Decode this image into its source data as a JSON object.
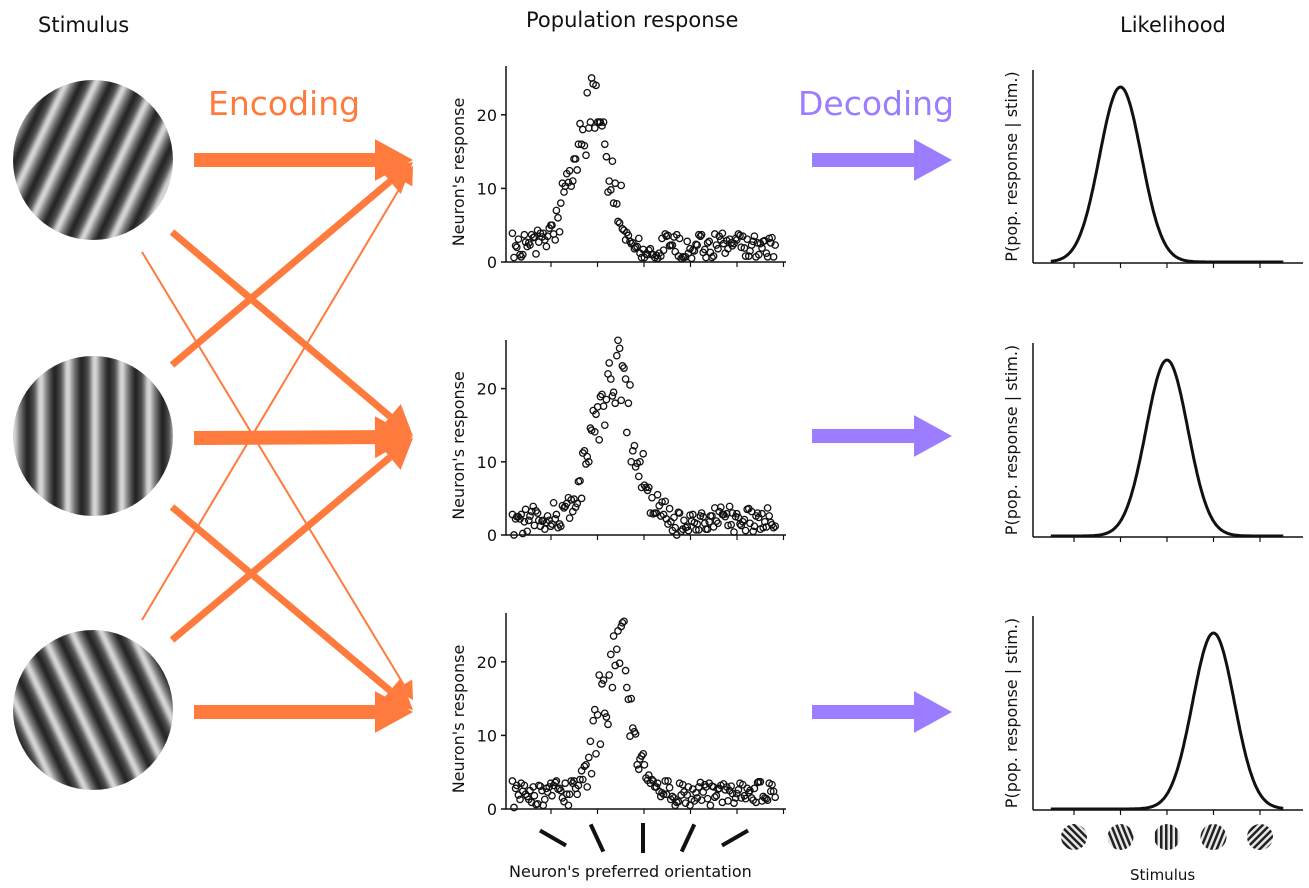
{
  "headers": {
    "stimulus": "Stimulus",
    "population": "Population response",
    "likelihood": "Likelihood"
  },
  "labels": {
    "encoding": "Encoding",
    "decoding": "Decoding",
    "x_pref": "Neuron's preferred orientation",
    "x_stim": "Stimulus"
  },
  "colors": {
    "encoding": "#ff7a3d",
    "decoding": "#9c7cff",
    "ink": "#111111"
  },
  "stimulus_orientations_deg": [
    25,
    0,
    -25
  ],
  "chart_data": [
    {
      "type": "scatter",
      "ylabel": "Neuron's response",
      "yticks": [
        0,
        10,
        20
      ],
      "ylim": [
        0,
        27
      ],
      "xlim": [
        0,
        60
      ],
      "x": [
        0,
        1,
        2,
        3,
        4,
        5,
        6,
        7,
        8,
        9,
        10,
        11,
        12,
        13,
        14,
        15,
        16,
        17,
        18,
        19,
        20,
        21,
        22,
        23,
        24,
        25,
        26,
        27,
        28,
        29,
        30,
        31,
        32,
        33,
        34,
        35,
        36,
        37,
        38,
        39,
        40,
        41,
        42,
        43,
        44,
        45,
        46,
        47,
        48,
        49,
        50,
        51,
        52,
        53,
        54,
        55,
        56,
        57,
        58,
        59
      ],
      "series": [
        {
          "values": [
            3.9,
            2.0,
            0.7,
            2.7,
            2.3,
            3.4,
            2.7,
            3.9,
            3.5,
            5.0,
            7.0,
            8.0,
            10.3,
            12.4,
            14.0,
            16.0,
            18.0,
            23.0,
            25.0,
            24.0,
            19.0,
            16.0,
            11.0,
            8.0,
            5.5,
            4.5,
            4.0,
            2.5,
            2.0,
            1.2,
            0.6,
            1.6,
            1.0,
            0.5,
            3.2,
            3.5,
            2.3,
            1.4,
            3.2,
            0.6,
            1.2,
            1.6,
            2.3,
            3.7,
            0.6,
            1.3,
            3.8,
            3.5,
            2.5,
            1.8,
            2.2,
            3.0,
            2.0,
            0.8,
            1.5,
            3.5,
            1.0,
            2.8,
            0.7,
            3.3
          ]
        },
        {
          "values": [
            0.6,
            3.1,
            1.0,
            2.1,
            3.7,
            1.1,
            3.9,
            3.0,
            4.6,
            3.8,
            6.0,
            10.7,
            12.0,
            10.3,
            14.0,
            18.8,
            15.8,
            18.2,
            24.2,
            19.0,
            18.5,
            14.3,
            9.8,
            10.7,
            5.3,
            4.3,
            3.6,
            2.6,
            2.1,
            0.6,
            1.1,
            1.8,
            0.6,
            1.2,
            1.6,
            3.6,
            2.3,
            3.7,
            0.5,
            0.7,
            1.8,
            1.5,
            3.7,
            1.3,
            2.6,
            0.6,
            2.3,
            3.0,
            1.2,
            3.1,
            2.5,
            3.8,
            3.5,
            3.1,
            2.3,
            0.7,
            2.5,
            2.9,
            3.2,
            0.7
          ]
        },
        {
          "values": [
            2.2,
            1.0,
            3.7,
            2.6,
            3.3,
            4.3,
            3.4,
            2.1,
            5.0,
            3.0,
            4.1,
            9.5,
            10.8,
            11.0,
            12.5,
            16.0,
            14.5,
            19.0,
            18.2,
            19.0,
            19.0,
            9.5,
            13.7,
            7.9,
            10.4,
            3.0,
            2.8,
            1.8,
            3.2,
            1.7,
            1.0,
            1.0,
            0.9,
            0.8,
            3.8,
            2.2,
            3.4,
            0.8,
            0.7,
            2.8,
            0.5,
            2.4,
            3.5,
            1.7,
            2.8,
            0.8,
            1.8,
            3.9,
            2.9,
            2.6,
            3.2,
            3.6,
            1.9,
            0.8,
            2.8,
            2.6,
            1.9,
            1.2,
            2.6,
            2.3
          ]
        }
      ]
    },
    {
      "type": "scatter",
      "ylabel": "Neuron's response",
      "yticks": [
        0,
        10,
        20
      ],
      "ylim": [
        0,
        27
      ],
      "xlim": [
        0,
        60
      ],
      "x": [
        0,
        1,
        2,
        3,
        4,
        5,
        6,
        7,
        8,
        9,
        10,
        11,
        12,
        13,
        14,
        15,
        16,
        17,
        18,
        19,
        20,
        21,
        22,
        23,
        24,
        25,
        26,
        27,
        28,
        29,
        30,
        31,
        32,
        33,
        34,
        35,
        36,
        37,
        38,
        39,
        40,
        41,
        42,
        43,
        44,
        45,
        46,
        47,
        48,
        49,
        50,
        51,
        52,
        53,
        54,
        55,
        56,
        57,
        58,
        59
      ],
      "series": [
        {
          "values": [
            2.8,
            2.5,
            2.8,
            3.5,
            2.6,
            1.3,
            2.0,
            2.0,
            2.6,
            1.5,
            2.8,
            1.2,
            3.9,
            2.3,
            4.9,
            7.3,
            11.2,
            10.7,
            14.3,
            16.5,
            18.9,
            15.0,
            23.5,
            19.5,
            26.6,
            23.1,
            14.0,
            10.0,
            9.3,
            10.0,
            6.8,
            6.5,
            2.9,
            5.5,
            4.5,
            2.2,
            1.8,
            1.0,
            3.0,
            2.0,
            0.6,
            2.8,
            1.5,
            3.0,
            0.8,
            2.6,
            3.7,
            3.2,
            2.8,
            1.3,
            3.0,
            2.9,
            1.3,
            0.6,
            1.6,
            1.2,
            2.4,
            1.0,
            3.7,
            1.4
          ]
        },
        {
          "values": [
            0.0,
            2.5,
            0.2,
            0.5,
            3.2,
            3.3,
            1.2,
            0.8,
            2.0,
            4.4,
            1.0,
            4.0,
            4.3,
            4.8,
            3.8,
            7.4,
            11.5,
            10.0,
            17.0,
            17.5,
            19.2,
            18.5,
            21.3,
            18.0,
            25.5,
            22.8,
            18.0,
            11.5,
            9.8,
            6.5,
            6.5,
            3.0,
            3.0,
            4.0,
            2.8,
            1.5,
            0.6,
            0.0,
            0.5,
            1.0,
            2.7,
            1.7,
            0.7,
            2.5,
            0.8,
            2.6,
            1.9,
            3.8,
            2.5,
            3.9,
            0.4,
            2.4,
            1.8,
            3.5,
            3.2,
            2.6,
            0.8,
            1.8,
            2.6,
            1.0
          ]
        },
        {
          "values": [
            2.2,
            2.2,
            1.8,
            2.0,
            3.9,
            3.0,
            1.9,
            1.7,
            1.2,
            2.2,
            1.5,
            3.7,
            5.1,
            3.2,
            4.3,
            5.0,
            9.7,
            14.6,
            14.1,
            13.0,
            17.6,
            22.0,
            19.0,
            24.5,
            18.4,
            21.3,
            20.5,
            12.2,
            8.0,
            11.1,
            6.1,
            5.1,
            3.0,
            2.6,
            4.6,
            3.6,
            2.4,
            3.1,
            0.8,
            1.1,
            1.9,
            0.7,
            2.6,
            1.6,
            1.8,
            1.1,
            1.6,
            2.8,
            2.9,
            1.4,
            2.5,
            1.5,
            2.1,
            3.6,
            0.5,
            3.0,
            2.9,
            1.1,
            1.7,
            1.2
          ]
        }
      ]
    },
    {
      "type": "scatter",
      "ylabel": "Neuron's response",
      "yticks": [
        0,
        10,
        20
      ],
      "ylim": [
        0,
        27
      ],
      "xlim": [
        0,
        60
      ],
      "x": [
        0,
        1,
        2,
        3,
        4,
        5,
        6,
        7,
        8,
        9,
        10,
        11,
        12,
        13,
        14,
        15,
        16,
        17,
        18,
        19,
        20,
        21,
        22,
        23,
        24,
        25,
        26,
        27,
        28,
        29,
        30,
        31,
        32,
        33,
        34,
        35,
        36,
        37,
        38,
        39,
        40,
        41,
        42,
        43,
        44,
        45,
        46,
        47,
        48,
        49,
        50,
        51,
        52,
        53,
        54,
        55,
        56,
        57,
        58,
        59
      ],
      "series": [
        {
          "values": [
            3.8,
            3.2,
            3.5,
            2.0,
            2.5,
            1.8,
            3.2,
            0.5,
            2.3,
            1.8,
            3.8,
            2.5,
            3.5,
            2.0,
            3.8,
            3.2,
            4.0,
            3.0,
            4.8,
            7.5,
            8.8,
            13.0,
            18.2,
            23.5,
            24.2,
            25.3,
            16.5,
            15.0,
            10.2,
            6.8,
            6.0,
            4.6,
            3.8,
            3.5,
            2.2,
            2.0,
            1.3,
            0.5,
            3.5,
            2.3,
            3.0,
            2.7,
            1.5,
            1.2,
            3.0,
            0.5,
            1.6,
            2.8,
            3.4,
            1.1,
            2.1,
            2.1,
            1.5,
            1.4,
            2.5,
            2.8,
            3.7,
            1.7,
            1.2,
            3.3
          ]
        },
        {
          "values": [
            0.2,
            1.9,
            2.4,
            1.7,
            0.9,
            0.6,
            3.1,
            1.3,
            3.0,
            3.2,
            2.7,
            1.5,
            2.0,
            3.8,
            2.8,
            4.0,
            5.8,
            7.0,
            12.0,
            12.8,
            17.0,
            12.5,
            21.0,
            19.5,
            19.8,
            25.5,
            14.9,
            11.0,
            6.0,
            7.2,
            4.2,
            3.5,
            3.0,
            2.4,
            2.0,
            3.8,
            1.7,
            0.9,
            1.9,
            0.8,
            0.5,
            1.1,
            3.0,
            2.3,
            1.4,
            3.1,
            1.8,
            3.2,
            2.6,
            2.5,
            0.8,
            2.6,
            3.3,
            2.8,
            1.5,
            0.9,
            3.7,
            1.5,
            3.5,
            2.4
          ]
        },
        {
          "values": [
            2.8,
            1.3,
            3.2,
            1.3,
            3.0,
            0.7,
            2.5,
            2.8,
            3.5,
            3.6,
            2.8,
            1.0,
            0.5,
            3.5,
            2.0,
            5.2,
            6.0,
            9.2,
            13.5,
            18.2,
            17.5,
            11.5,
            16.5,
            21.7,
            24.8,
            18.8,
            9.9,
            10.5,
            5.4,
            7.5,
            3.9,
            4.0,
            3.0,
            1.7,
            3.8,
            2.9,
            1.5,
            1.0,
            3.3,
            1.9,
            1.3,
            2.2,
            3.6,
            3.3,
            3.5,
            3.0,
            2.7,
            0.9,
            3.0,
            3.1,
            1.5,
            3.5,
            1.8,
            2.2,
            1.2,
            3.6,
            1.1,
            1.4,
            2.4,
            1.6
          ]
        }
      ]
    },
    {
      "type": "line",
      "ylabel": "P(pop. response | stim.)",
      "xlim": [
        -2.5,
        2.5
      ],
      "x_ticks": [
        -2,
        -1,
        0,
        1,
        2
      ],
      "curve": {
        "mean": -1.0,
        "sd": 0.45
      }
    },
    {
      "type": "line",
      "ylabel": "P(pop. response | stim.)",
      "xlim": [
        -2.5,
        2.5
      ],
      "x_ticks": [
        -2,
        -1,
        0,
        1,
        2
      ],
      "curve": {
        "mean": 0.0,
        "sd": 0.45
      }
    },
    {
      "type": "line",
      "ylabel": "P(pop. response | stim.)",
      "xlim": [
        -2.5,
        2.5
      ],
      "x_ticks": [
        -2,
        -1,
        0,
        1,
        2
      ],
      "curve": {
        "mean": 1.0,
        "sd": 0.45
      }
    }
  ],
  "stimulus_axis_icons_deg": [
    -45,
    -22,
    0,
    22,
    45
  ],
  "pref_orientation_marks_deg": [
    -60,
    -25,
    0,
    25,
    60
  ]
}
